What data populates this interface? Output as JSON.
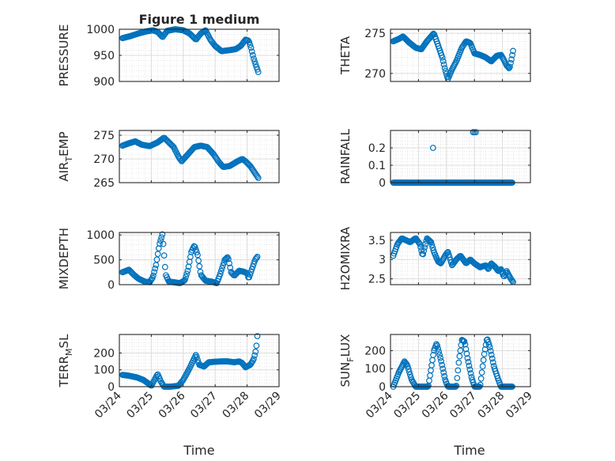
{
  "figure_title": "Figure 1 medium",
  "x_axis_label": "Time",
  "colors": {
    "marker": "#0072BD",
    "axis": "#262626",
    "grid": "#dcdcdc",
    "background": "#ffffff"
  },
  "chart_data": [
    {
      "type": "scatter",
      "ylabel": "PRESSURE",
      "ylim": [
        900,
        1000
      ],
      "yticks": [
        900,
        950,
        1000
      ],
      "yticklabels": [
        "900",
        "950",
        "1000"
      ],
      "xticks": [
        0,
        1,
        2,
        3,
        4,
        5
      ],
      "xticklabels": [],
      "xlim": [
        0,
        5
      ],
      "knots": [
        [
          0.1,
          983
        ],
        [
          0.35,
          987
        ],
        [
          0.6,
          992
        ],
        [
          0.85,
          996
        ],
        [
          1.05,
          998
        ],
        [
          1.2,
          995
        ],
        [
          1.35,
          985
        ],
        [
          1.5,
          997
        ],
        [
          1.75,
          1000
        ],
        [
          2.0,
          998
        ],
        [
          2.2,
          992
        ],
        [
          2.4,
          980
        ],
        [
          2.55,
          992
        ],
        [
          2.7,
          998
        ],
        [
          2.85,
          980
        ],
        [
          3.0,
          968
        ],
        [
          3.2,
          958
        ],
        [
          3.45,
          960
        ],
        [
          3.65,
          962
        ],
        [
          3.8,
          968
        ],
        [
          3.95,
          980
        ],
        [
          4.05,
          978
        ],
        [
          4.12,
          965
        ],
        [
          4.2,
          945
        ],
        [
          4.28,
          930
        ],
        [
          4.35,
          918
        ]
      ],
      "n": 150
    },
    {
      "type": "scatter",
      "ylabel": "THETA",
      "ylim": [
        269,
        275.5
      ],
      "yticks": [
        270,
        275
      ],
      "yticklabels": [
        "270",
        "275"
      ],
      "xticks": [
        0,
        1,
        2,
        3,
        4,
        5
      ],
      "xticklabels": [],
      "xlim": [
        0,
        5
      ],
      "knots": [
        [
          0.1,
          274
        ],
        [
          0.3,
          274.3
        ],
        [
          0.45,
          274.6
        ],
        [
          0.65,
          273.9
        ],
        [
          0.9,
          273.2
        ],
        [
          1.1,
          273
        ],
        [
          1.3,
          274
        ],
        [
          1.45,
          274.6
        ],
        [
          1.55,
          275
        ],
        [
          1.7,
          273.5
        ],
        [
          1.85,
          272
        ],
        [
          1.95,
          270.5
        ],
        [
          2.05,
          269.3
        ],
        [
          2.2,
          270.5
        ],
        [
          2.35,
          271.5
        ],
        [
          2.55,
          273.2
        ],
        [
          2.7,
          274
        ],
        [
          2.85,
          273.8
        ],
        [
          3.0,
          272.5
        ],
        [
          3.2,
          272.3
        ],
        [
          3.4,
          272
        ],
        [
          3.6,
          271.5
        ],
        [
          3.8,
          272.2
        ],
        [
          3.95,
          272.3
        ],
        [
          4.05,
          271.7
        ],
        [
          4.15,
          271
        ],
        [
          4.25,
          270.6
        ],
        [
          4.32,
          271.7
        ],
        [
          4.38,
          272.8
        ]
      ],
      "n": 150
    },
    {
      "type": "scatter",
      "ylabel": "AIR_TEMP",
      "ylim": [
        265,
        276
      ],
      "yticks": [
        265,
        270,
        275
      ],
      "yticklabels": [
        "265",
        "270",
        "275"
      ],
      "xticks": [
        0,
        1,
        2,
        3,
        4,
        5
      ],
      "xticklabels": [],
      "xlim": [
        0,
        5
      ],
      "knots": [
        [
          0.1,
          272.8
        ],
        [
          0.3,
          273.3
        ],
        [
          0.5,
          273.7
        ],
        [
          0.7,
          273
        ],
        [
          0.95,
          272.7
        ],
        [
          1.2,
          273.5
        ],
        [
          1.4,
          274.5
        ],
        [
          1.55,
          273.5
        ],
        [
          1.7,
          272.5
        ],
        [
          1.85,
          270.5
        ],
        [
          1.95,
          269.5
        ],
        [
          2.15,
          271
        ],
        [
          2.35,
          272.5
        ],
        [
          2.55,
          272.8
        ],
        [
          2.75,
          272.5
        ],
        [
          2.95,
          271
        ],
        [
          3.1,
          269.5
        ],
        [
          3.25,
          268.3
        ],
        [
          3.45,
          268.5
        ],
        [
          3.7,
          269.5
        ],
        [
          3.85,
          270
        ],
        [
          3.95,
          269.5
        ],
        [
          4.1,
          268.5
        ],
        [
          4.2,
          267.5
        ],
        [
          4.3,
          266.5
        ],
        [
          4.35,
          266
        ]
      ],
      "n": 150
    },
    {
      "type": "scatter",
      "ylabel": "RAINFALL",
      "ylim": [
        0,
        0.3
      ],
      "yticks": [
        0,
        0.1,
        0.2
      ],
      "yticklabels": [
        "0",
        "0.1",
        "0.2"
      ],
      "xticks": [
        0,
        1,
        2,
        3,
        4,
        5
      ],
      "xticklabels": [],
      "xlim": [
        0,
        5
      ],
      "baseline_start": 0.1,
      "baseline_end": 4.35,
      "baseline_value": 0,
      "extra_points": [
        [
          1.52,
          0.2
        ],
        [
          2.95,
          0.29
        ],
        [
          3.0,
          0.29
        ],
        [
          3.05,
          0.29
        ]
      ],
      "n": 150
    },
    {
      "type": "scatter",
      "ylabel": "MIXDEPTH",
      "ylim": [
        0,
        1050
      ],
      "yticks": [
        0,
        500,
        1000
      ],
      "yticklabels": [
        "0",
        "500",
        "1000"
      ],
      "xticks": [
        0,
        1,
        2,
        3,
        4,
        5
      ],
      "xticklabels": [],
      "xlim": [
        0,
        5
      ],
      "knots": [
        [
          0.1,
          250
        ],
        [
          0.3,
          300
        ],
        [
          0.45,
          200
        ],
        [
          0.6,
          120
        ],
        [
          0.8,
          60
        ],
        [
          0.95,
          50
        ],
        [
          1.05,
          150
        ],
        [
          1.15,
          400
        ],
        [
          1.25,
          800
        ],
        [
          1.35,
          1020
        ],
        [
          1.45,
          200
        ],
        [
          1.55,
          60
        ],
        [
          1.7,
          50
        ],
        [
          1.9,
          30
        ],
        [
          2.05,
          90
        ],
        [
          2.15,
          300
        ],
        [
          2.25,
          650
        ],
        [
          2.35,
          790
        ],
        [
          2.45,
          600
        ],
        [
          2.55,
          200
        ],
        [
          2.7,
          80
        ],
        [
          2.9,
          60
        ],
        [
          3.05,
          30
        ],
        [
          3.15,
          200
        ],
        [
          3.3,
          500
        ],
        [
          3.4,
          560
        ],
        [
          3.5,
          250
        ],
        [
          3.6,
          180
        ],
        [
          3.75,
          280
        ],
        [
          3.9,
          260
        ],
        [
          4.0,
          230
        ],
        [
          4.05,
          120
        ],
        [
          4.15,
          310
        ],
        [
          4.25,
          500
        ],
        [
          4.32,
          560
        ]
      ],
      "n": 150
    },
    {
      "type": "scatter",
      "ylabel": "H2OMIXRA",
      "ylim": [
        2.35,
        3.7
      ],
      "yticks": [
        2.5,
        3,
        3.5
      ],
      "yticklabels": [
        "2.5",
        "3",
        "3.5"
      ],
      "xticks": [
        0,
        1,
        2,
        3,
        4,
        5
      ],
      "xticklabels": [],
      "xlim": [
        0,
        5
      ],
      "knots": [
        [
          0.1,
          3.1
        ],
        [
          0.25,
          3.4
        ],
        [
          0.4,
          3.55
        ],
        [
          0.55,
          3.5
        ],
        [
          0.7,
          3.45
        ],
        [
          0.9,
          3.55
        ],
        [
          1.05,
          3.4
        ],
        [
          1.15,
          3.1
        ],
        [
          1.3,
          3.55
        ],
        [
          1.45,
          3.45
        ],
        [
          1.55,
          3.2
        ],
        [
          1.7,
          2.95
        ],
        [
          1.8,
          2.9
        ],
        [
          1.95,
          3.1
        ],
        [
          2.05,
          3.2
        ],
        [
          2.2,
          2.85
        ],
        [
          2.35,
          3.0
        ],
        [
          2.5,
          3.1
        ],
        [
          2.7,
          2.9
        ],
        [
          2.85,
          3.0
        ],
        [
          3.0,
          2.9
        ],
        [
          3.2,
          2.8
        ],
        [
          3.4,
          2.85
        ],
        [
          3.5,
          2.75
        ],
        [
          3.6,
          2.9
        ],
        [
          3.75,
          2.8
        ],
        [
          3.85,
          2.7
        ],
        [
          3.95,
          2.75
        ],
        [
          4.05,
          2.55
        ],
        [
          4.15,
          2.7
        ],
        [
          4.3,
          2.5
        ],
        [
          4.38,
          2.42
        ]
      ],
      "n": 150
    },
    {
      "type": "scatter",
      "ylabel": "TERR_MSL",
      "ylim": [
        0,
        310
      ],
      "yticks": [
        0,
        100,
        200
      ],
      "yticklabels": [
        "0",
        "100",
        "200"
      ],
      "xticks": [
        0,
        1,
        2,
        3,
        4,
        5
      ],
      "xticklabels": [
        "03/24",
        "03/25",
        "03/26",
        "03/27",
        "03/28",
        "03/29"
      ],
      "xlim": [
        0,
        5
      ],
      "knots": [
        [
          0.1,
          70
        ],
        [
          0.3,
          65
        ],
        [
          0.55,
          55
        ],
        [
          0.75,
          40
        ],
        [
          0.9,
          20
        ],
        [
          1.0,
          5
        ],
        [
          1.1,
          40
        ],
        [
          1.2,
          75
        ],
        [
          1.3,
          30
        ],
        [
          1.4,
          0
        ],
        [
          1.6,
          0
        ],
        [
          1.85,
          5
        ],
        [
          2.0,
          40
        ],
        [
          2.2,
          110
        ],
        [
          2.4,
          190
        ],
        [
          2.5,
          130
        ],
        [
          2.65,
          120
        ],
        [
          2.8,
          145
        ],
        [
          3.0,
          148
        ],
        [
          3.2,
          150
        ],
        [
          3.4,
          150
        ],
        [
          3.6,
          145
        ],
        [
          3.75,
          150
        ],
        [
          3.85,
          140
        ],
        [
          3.95,
          115
        ],
        [
          4.1,
          130
        ],
        [
          4.2,
          160
        ],
        [
          4.28,
          220
        ],
        [
          4.32,
          300
        ]
      ],
      "n": 150
    },
    {
      "type": "scatter",
      "ylabel": "SUN_FLUX",
      "ylim": [
        0,
        290
      ],
      "yticks": [
        0,
        100,
        200
      ],
      "yticklabels": [
        "0",
        "100",
        "200"
      ],
      "xticks": [
        0,
        1,
        2,
        3,
        4,
        5
      ],
      "xticklabels": [
        "03/24",
        "03/25",
        "03/26",
        "03/27",
        "03/28",
        "03/29"
      ],
      "xlim": [
        0,
        5
      ],
      "knots": [
        [
          0.1,
          0
        ],
        [
          0.3,
          80
        ],
        [
          0.5,
          140
        ],
        [
          0.6,
          120
        ],
        [
          0.75,
          40
        ],
        [
          0.9,
          0
        ],
        [
          1.35,
          0
        ],
        [
          1.45,
          100
        ],
        [
          1.55,
          200
        ],
        [
          1.65,
          240
        ],
        [
          1.8,
          150
        ],
        [
          1.95,
          40
        ],
        [
          2.05,
          0
        ],
        [
          2.35,
          0
        ],
        [
          2.45,
          150
        ],
        [
          2.55,
          260
        ],
        [
          2.65,
          250
        ],
        [
          2.75,
          160
        ],
        [
          2.9,
          50
        ],
        [
          3.0,
          0
        ],
        [
          3.2,
          0
        ],
        [
          3.35,
          180
        ],
        [
          3.45,
          270
        ],
        [
          3.55,
          220
        ],
        [
          3.7,
          110
        ],
        [
          3.85,
          40
        ],
        [
          3.95,
          0
        ],
        [
          4.35,
          0
        ]
      ],
      "n": 150
    }
  ]
}
